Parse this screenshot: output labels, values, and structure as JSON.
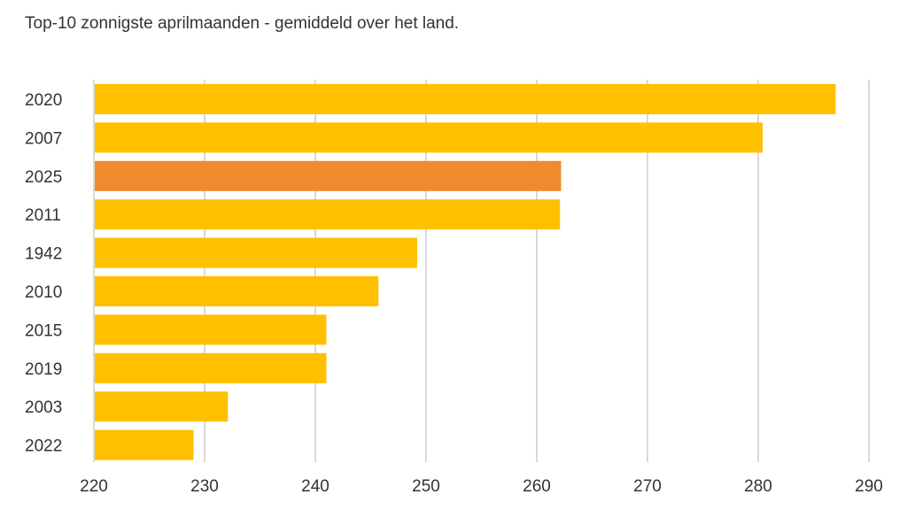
{
  "chart_data": {
    "type": "bar",
    "orientation": "horizontal",
    "title": "",
    "subtitle": "Top-10 zonnigste aprilmaanden - gemiddeld over het land.",
    "categories": [
      "2020",
      "2007",
      "2025",
      "2011",
      "1942",
      "2010",
      "2015",
      "2019",
      "2003",
      "2022"
    ],
    "values": [
      287,
      280.4,
      262.2,
      262.1,
      249.2,
      245.7,
      241,
      241,
      232.1,
      229
    ],
    "highlight": "2025",
    "colors": {
      "bar": "#ffc000",
      "highlight": "#f08a2c",
      "grid": "#d9d9d9",
      "text": "#333333"
    },
    "xlim": [
      220,
      290
    ],
    "xticks": [
      "220",
      "230",
      "240",
      "250",
      "260",
      "270",
      "280",
      "290"
    ],
    "xlabel": "",
    "ylabel": "",
    "grid": true,
    "legend": "none"
  }
}
